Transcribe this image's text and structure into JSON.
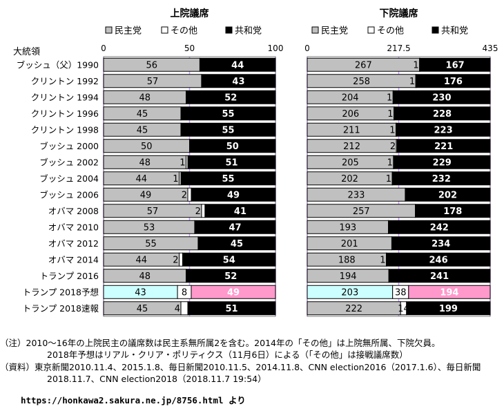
{
  "chart_data": [
    {
      "type": "bar",
      "stacked": true,
      "orientation": "horizontal",
      "title": "上院議席",
      "axis_header": "大統領",
      "xlim": [
        0,
        100
      ],
      "ticks": [
        "0",
        "50",
        "100"
      ],
      "categories": [
        "ブッシュ（父）1990",
        "クリントン 1992",
        "クリントン 1994",
        "クリントン 1996",
        "クリントン 1998",
        "ブッシュ 2000",
        "ブッシュ 2002",
        "ブッシュ 2004",
        "ブッシュ 2006",
        "オバマ 2008",
        "オバマ 2010",
        "オバマ 2012",
        "オバマ 2014",
        "トランプ 2016",
        "トランプ 2018予想",
        "トランプ 2018速報"
      ],
      "series": [
        {
          "name": "民主党",
          "values": [
            56,
            57,
            48,
            45,
            45,
            50,
            48,
            44,
            49,
            57,
            53,
            55,
            44,
            48,
            43,
            45
          ]
        },
        {
          "name": "その他",
          "values": [
            0,
            0,
            0,
            0,
            0,
            0,
            1,
            1,
            2,
            2,
            0,
            0,
            2,
            0,
            8,
            4
          ]
        },
        {
          "name": "共和党",
          "values": [
            44,
            43,
            52,
            55,
            55,
            50,
            51,
            55,
            49,
            41,
            47,
            45,
            54,
            52,
            49,
            51
          ]
        }
      ],
      "segment_labels": [
        [
          "56",
          "",
          "44"
        ],
        [
          "57",
          "",
          "43"
        ],
        [
          "48",
          "",
          "52"
        ],
        [
          "45",
          "",
          "55"
        ],
        [
          "45",
          "",
          "55"
        ],
        [
          "50",
          "",
          "50"
        ],
        [
          "48",
          "1",
          "51"
        ],
        [
          "44",
          "1",
          "55"
        ],
        [
          "49",
          "2",
          "49"
        ],
        [
          "57",
          "2",
          "41"
        ],
        [
          "53",
          "",
          "47"
        ],
        [
          "55",
          "",
          "45"
        ],
        [
          "44",
          "2",
          "54"
        ],
        [
          "48",
          "",
          "52"
        ],
        [
          "43",
          "8",
          "49"
        ],
        [
          "45",
          "4",
          "51"
        ]
      ]
    },
    {
      "type": "bar",
      "stacked": true,
      "orientation": "horizontal",
      "title": "下院議席",
      "xlim": [
        0,
        435
      ],
      "ticks": [
        "0",
        "217.5",
        "435"
      ],
      "categories": [
        "ブッシュ（父）1990",
        "クリントン 1992",
        "クリントン 1994",
        "クリントン 1996",
        "クリントン 1998",
        "ブッシュ 2000",
        "ブッシュ 2002",
        "ブッシュ 2004",
        "ブッシュ 2006",
        "オバマ 2008",
        "オバマ 2010",
        "オバマ 2012",
        "オバマ 2014",
        "トランプ 2016",
        "トランプ 2018予想",
        "トランプ 2018速報"
      ],
      "series": [
        {
          "name": "民主党",
          "values": [
            267,
            258,
            204,
            206,
            211,
            212,
            205,
            202,
            233,
            257,
            193,
            201,
            188,
            194,
            203,
            222
          ]
        },
        {
          "name": "その他",
          "values": [
            1,
            1,
            1,
            1,
            1,
            2,
            1,
            1,
            0,
            0,
            0,
            0,
            1,
            0,
            38,
            14
          ]
        },
        {
          "name": "共和党",
          "values": [
            167,
            176,
            230,
            228,
            223,
            221,
            229,
            232,
            202,
            178,
            242,
            234,
            246,
            241,
            194,
            199
          ]
        }
      ],
      "segment_labels": [
        [
          "267",
          "1",
          "167"
        ],
        [
          "258",
          "1",
          "176"
        ],
        [
          "204",
          "1",
          "230"
        ],
        [
          "206",
          "1",
          "228"
        ],
        [
          "211",
          "1",
          "223"
        ],
        [
          "212",
          "2",
          "221"
        ],
        [
          "205",
          "1",
          "229"
        ],
        [
          "202",
          "1",
          "232"
        ],
        [
          "233",
          "",
          "202"
        ],
        [
          "257",
          "",
          "178"
        ],
        [
          "193",
          "",
          "242"
        ],
        [
          "201",
          "",
          "234"
        ],
        [
          "188",
          "1",
          "246"
        ],
        [
          "194",
          "",
          "241"
        ],
        [
          "203",
          "38",
          "194"
        ],
        [
          "222",
          "14",
          "199"
        ]
      ]
    }
  ],
  "legend": [
    "民主党",
    "その他",
    "共和党"
  ],
  "colors": {
    "dem": "#c0c0c0",
    "other": "#ffffff",
    "rep": "#000000",
    "forecast_dem": "#ccffff",
    "forecast_rep": "#ff99cc",
    "forecast_rep_text": "#ffffff",
    "gridline": "#cc99ff",
    "plot_border": "#808080"
  },
  "forecast_row_index": 14,
  "notes": {
    "line1": "（注）2010～16年の上院民主の議席数は民主系無所属2を含む。2014年の「その他」は上院無所属、下院欠員。",
    "line2": "2018年予想はリアル・クリア・ポリティクス（11月6日）による（「その他」は接戦議席数）",
    "line3": "（資料）東京新聞2010.11.4、2015.1.8、毎日新聞2010.11.5、2014.11.8、CNN election2016（2017.1.6）、毎日新聞",
    "line4": "2018.11.7、CNN election2018（2018.11.7 19:54）"
  },
  "source": {
    "url": "https://honkawa2.sakura.ne.jp/8756.html",
    "suffix": "より"
  }
}
